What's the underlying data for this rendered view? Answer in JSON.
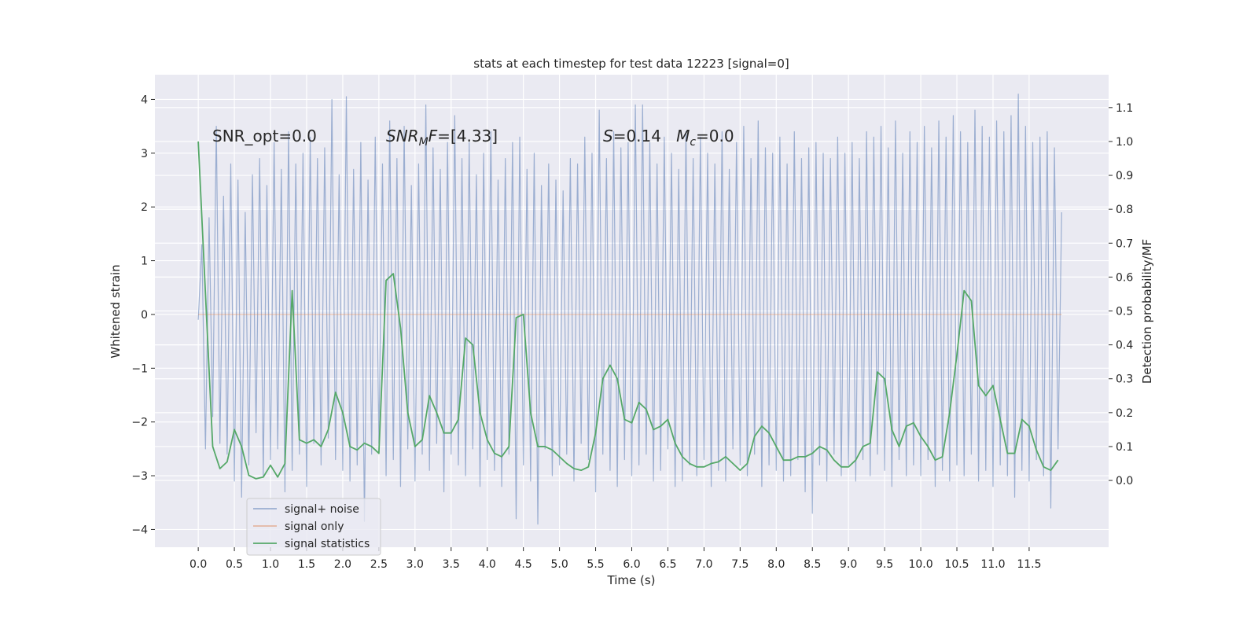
{
  "chart_data": {
    "type": "line",
    "title": "stats at each timestep for test data 12223 [signal=0]",
    "xlabel": "Time (s)",
    "ylabel": "Whitened strain",
    "y2label": "Detection probability/MF",
    "xlim": [
      -0.6,
      12.6
    ],
    "ylim": [
      -4.33,
      4.46
    ],
    "y2lim": [
      -0.197,
      1.197
    ],
    "xticks": [
      {
        "value": 0,
        "label": "0.0"
      },
      0.5,
      {
        "value": 1,
        "label": "1.0"
      },
      1.5,
      {
        "value": 2,
        "label": "2.0"
      },
      2.5,
      {
        "value": 3,
        "label": "3.0"
      },
      3.5,
      {
        "value": 4,
        "label": "4.0"
      },
      4.5,
      {
        "value": 5,
        "label": "5.0"
      },
      5.5,
      {
        "value": 6,
        "label": "6.0"
      },
      6.5,
      {
        "value": 7,
        "label": "7.0"
      },
      7.5,
      {
        "value": 8,
        "label": "8.0"
      },
      8.5,
      {
        "value": 9,
        "label": "9.0"
      },
      9.5,
      {
        "value": 10,
        "label": "10.0"
      },
      10.5,
      {
        "value": 11,
        "label": "11.0"
      },
      11.5
    ],
    "yticks": [
      {
        "value": -4,
        "label": "−4"
      },
      {
        "value": -3,
        "label": "−3"
      },
      {
        "value": -2,
        "label": "−2"
      },
      {
        "value": -1,
        "label": "−1"
      },
      0,
      1,
      2,
      3,
      4
    ],
    "y2ticks": [
      {
        "value": 0,
        "label": "0.0"
      },
      0.1,
      0.2,
      0.3,
      0.4,
      0.5,
      0.6,
      0.7,
      0.8,
      0.9,
      {
        "value": 1,
        "label": "1.0"
      },
      1.1
    ],
    "grid": true,
    "legend": "lower left",
    "annotations": [
      [
        {
          "text": "SNR_opt=0.0"
        }
      ],
      [
        {
          "text": "SNR",
          "italic": true
        },
        {
          "text": "M",
          "italic": true,
          "sub": true
        },
        {
          "text": "F",
          "italic": true
        },
        {
          "text": "=[4.33]"
        }
      ],
      [
        {
          "text": "S",
          "italic": true
        },
        {
          "text": "=0.14   "
        },
        {
          "text": "M",
          "italic": true
        },
        {
          "text": "c",
          "italic": true,
          "sub": true
        },
        {
          "text": "=0.0"
        }
      ]
    ],
    "series": [
      {
        "name": "signal+ noise",
        "color": "#4c72b0",
        "alpha": 0.5,
        "x": [
          0,
          0.05,
          0.1,
          0.15,
          0.2,
          0.25,
          0.3,
          0.35,
          0.4,
          0.45,
          0.5,
          0.55,
          0.6,
          0.65,
          0.7,
          0.75,
          0.8,
          0.85,
          0.9,
          0.95,
          1,
          1.05,
          1.1,
          1.15,
          1.2,
          1.25,
          1.3,
          1.35,
          1.4,
          1.45,
          1.5,
          1.55,
          1.6,
          1.65,
          1.7,
          1.75,
          1.8,
          1.85,
          1.9,
          1.95,
          2,
          2.05,
          2.1,
          2.15,
          2.2,
          2.25,
          2.3,
          2.35,
          2.4,
          2.45,
          2.5,
          2.55,
          2.6,
          2.65,
          2.7,
          2.75,
          2.8,
          2.85,
          2.9,
          2.95,
          3,
          3.05,
          3.1,
          3.15,
          3.2,
          3.25,
          3.3,
          3.35,
          3.4,
          3.45,
          3.5,
          3.55,
          3.6,
          3.65,
          3.7,
          3.75,
          3.8,
          3.85,
          3.9,
          3.95,
          4,
          4.05,
          4.1,
          4.15,
          4.2,
          4.25,
          4.3,
          4.35,
          4.4,
          4.45,
          4.5,
          4.55,
          4.6,
          4.65,
          4.7,
          4.75,
          4.8,
          4.85,
          4.9,
          4.95,
          5,
          5.05,
          5.1,
          5.15,
          5.2,
          5.25,
          5.3,
          5.35,
          5.4,
          5.45,
          5.5,
          5.55,
          5.6,
          5.65,
          5.7,
          5.75,
          5.8,
          5.85,
          5.9,
          5.95,
          6,
          6.05,
          6.1,
          6.15,
          6.2,
          6.25,
          6.3,
          6.35,
          6.4,
          6.45,
          6.5,
          6.55,
          6.6,
          6.65,
          6.7,
          6.75,
          6.8,
          6.85,
          6.9,
          6.95,
          7,
          7.05,
          7.1,
          7.15,
          7.2,
          7.25,
          7.3,
          7.35,
          7.4,
          7.45,
          7.5,
          7.55,
          7.6,
          7.65,
          7.7,
          7.75,
          7.8,
          7.85,
          7.9,
          7.95,
          8,
          8.05,
          8.1,
          8.15,
          8.2,
          8.25,
          8.3,
          8.35,
          8.4,
          8.45,
          8.5,
          8.55,
          8.6,
          8.65,
          8.7,
          8.75,
          8.8,
          8.85,
          8.9,
          8.95,
          9,
          9.05,
          9.1,
          9.15,
          9.2,
          9.25,
          9.3,
          9.35,
          9.4,
          9.45,
          9.5,
          9.55,
          9.6,
          9.65,
          9.7,
          9.75,
          9.8,
          9.85,
          9.9,
          9.95,
          10,
          10.05,
          10.1,
          10.15,
          10.2,
          10.25,
          10.3,
          10.35,
          10.4,
          10.45,
          10.5,
          10.55,
          10.6,
          10.65,
          10.7,
          10.75,
          10.8,
          10.85,
          10.9,
          10.95,
          11,
          11.05,
          11.1,
          11.15,
          11.2,
          11.25,
          11.3,
          11.35,
          11.4,
          11.45,
          11.5,
          11.55,
          11.6,
          11.65,
          11.7,
          11.75,
          11.8,
          11.85,
          11.9,
          11.95
        ],
        "values": [
          -0.1,
          1.3,
          -2.5,
          1.8,
          -1.9,
          3.5,
          -2.4,
          2.2,
          -2.6,
          2.8,
          -3.1,
          2.5,
          -3.4,
          1.9,
          -2.8,
          2.6,
          -2.2,
          2.9,
          -3.0,
          2.4,
          -2.7,
          3.2,
          -2.5,
          2.7,
          -3.3,
          3.4,
          -2.9,
          2.8,
          -2.6,
          3.0,
          -3.2,
          3.3,
          -2.4,
          2.9,
          -2.8,
          3.1,
          -2.3,
          4.0,
          -2.7,
          2.6,
          -2.9,
          4.05,
          -3.1,
          2.7,
          -2.8,
          3.2,
          -3.85,
          2.5,
          -2.6,
          3.3,
          -2.4,
          2.8,
          -3.0,
          3.6,
          -2.7,
          2.9,
          -3.2,
          3.5,
          -2.5,
          2.4,
          -3.1,
          2.8,
          -2.6,
          3.9,
          -2.9,
          3.1,
          -2.4,
          2.7,
          -3.3,
          3.2,
          -2.6,
          3.7,
          -2.8,
          2.9,
          -3.0,
          3.2,
          -2.5,
          2.6,
          -3.2,
          3.0,
          -2.7,
          3.4,
          -2.9,
          2.5,
          -3.2,
          2.9,
          -2.6,
          3.2,
          -3.8,
          3.3,
          -2.8,
          2.7,
          -3.1,
          3.0,
          -3.9,
          2.4,
          -2.5,
          2.8,
          -3.0,
          2.5,
          -2.8,
          2.3,
          -2.6,
          2.9,
          -3.1,
          2.8,
          -2.4,
          3.3,
          -2.7,
          3.0,
          -3.3,
          3.8,
          -2.6,
          2.9,
          -2.9,
          3.4,
          -3.2,
          3.1,
          -2.7,
          3.2,
          -3.0,
          3.9,
          -2.8,
          3.9,
          -2.6,
          3.2,
          -3.1,
          2.8,
          -2.9,
          3.3,
          -2.5,
          3.0,
          -3.2,
          2.7,
          -3.1,
          3.4,
          -2.8,
          2.9,
          -3.0,
          3.3,
          -2.7,
          3.0,
          -3.2,
          2.8,
          -2.9,
          3.4,
          -3.1,
          2.7,
          -2.5,
          3.2,
          -2.8,
          3.5,
          -3.0,
          2.9,
          -2.6,
          3.6,
          -3.2,
          3.1,
          -2.8,
          3.0,
          -2.9,
          3.3,
          -3.1,
          2.8,
          -3.0,
          3.4,
          -2.7,
          2.9,
          -3.3,
          3.1,
          -3.7,
          3.2,
          -2.8,
          3.0,
          -3.1,
          2.9,
          -2.6,
          3.3,
          -3.0,
          3.0,
          -2.8,
          3.2,
          -3.1,
          2.9,
          -2.7,
          3.4,
          -3.0,
          3.3,
          -2.6,
          3.5,
          -2.9,
          3.1,
          -3.2,
          3.6,
          -2.7,
          3.0,
          -3.0,
          3.4,
          -2.8,
          3.2,
          -3.0,
          3.5,
          -2.7,
          3.1,
          -3.2,
          3.6,
          -2.9,
          3.3,
          -3.1,
          3.7,
          -2.8,
          3.4,
          -3.0,
          3.2,
          -2.6,
          3.8,
          -3.1,
          3.5,
          -2.9,
          3.3,
          -3.2,
          3.6,
          -2.8,
          3.4,
          -3.0,
          3.7,
          -3.4,
          4.1,
          -2.9,
          3.5,
          -3.1,
          3.2,
          -2.7,
          3.3,
          -3.0,
          3.4,
          -3.6,
          3.1,
          -2.5,
          1.9
        ]
      },
      {
        "name": "signal only",
        "color": "#dd8452",
        "alpha": 0.5,
        "x": [
          0,
          11.95
        ],
        "values": [
          0,
          0
        ]
      },
      {
        "name": "signal statistics",
        "color": "#55a868",
        "axis": "y2",
        "x": [
          0,
          0.1,
          0.2,
          0.3,
          0.4,
          0.5,
          0.6,
          0.7,
          0.8,
          0.9,
          1,
          1.1,
          1.2,
          1.3,
          1.4,
          1.5,
          1.6,
          1.7,
          1.8,
          1.9,
          2,
          2.1,
          2.2,
          2.3,
          2.4,
          2.5,
          2.6,
          2.7,
          2.8,
          2.9,
          3,
          3.1,
          3.2,
          3.3,
          3.4,
          3.5,
          3.6,
          3.7,
          3.8,
          3.9,
          4,
          4.1,
          4.2,
          4.3,
          4.4,
          4.5,
          4.6,
          4.7,
          4.8,
          4.9,
          5,
          5.1,
          5.2,
          5.3,
          5.4,
          5.5,
          5.6,
          5.7,
          5.8,
          5.9,
          6,
          6.1,
          6.2,
          6.3,
          6.4,
          6.5,
          6.6,
          6.7,
          6.8,
          6.9,
          7,
          7.1,
          7.2,
          7.3,
          7.4,
          7.5,
          7.6,
          7.7,
          7.8,
          7.9,
          8,
          8.1,
          8.2,
          8.3,
          8.4,
          8.5,
          8.6,
          8.7,
          8.8,
          8.9,
          9,
          9.1,
          9.2,
          9.3,
          9.4,
          9.5,
          9.6,
          9.7,
          9.8,
          9.9,
          10,
          10.1,
          10.2,
          10.3,
          10.4,
          10.5,
          10.6,
          10.7,
          10.8,
          10.9,
          11,
          11.1,
          11.2,
          11.3,
          11.4,
          11.5,
          11.6,
          11.7,
          11.8,
          11.9
        ],
        "values": [
          1.0,
          0.55,
          0.1,
          0.035,
          0.055,
          0.15,
          0.1,
          0.015,
          0.005,
          0.01,
          0.045,
          0.01,
          0.05,
          0.56,
          0.12,
          0.11,
          0.12,
          0.1,
          0.15,
          0.26,
          0.2,
          0.1,
          0.09,
          0.11,
          0.1,
          0.08,
          0.59,
          0.61,
          0.45,
          0.2,
          0.1,
          0.12,
          0.25,
          0.2,
          0.14,
          0.14,
          0.18,
          0.42,
          0.4,
          0.2,
          0.12,
          0.08,
          0.07,
          0.1,
          0.48,
          0.49,
          0.2,
          0.1,
          0.1,
          0.09,
          0.07,
          0.05,
          0.035,
          0.03,
          0.04,
          0.14,
          0.3,
          0.34,
          0.3,
          0.18,
          0.17,
          0.23,
          0.21,
          0.15,
          0.16,
          0.18,
          0.11,
          0.07,
          0.05,
          0.04,
          0.04,
          0.05,
          0.055,
          0.07,
          0.05,
          0.03,
          0.05,
          0.13,
          0.16,
          0.14,
          0.1,
          0.06,
          0.06,
          0.07,
          0.07,
          0.08,
          0.1,
          0.09,
          0.06,
          0.04,
          0.04,
          0.06,
          0.1,
          0.11,
          0.32,
          0.3,
          0.15,
          0.1,
          0.16,
          0.17,
          0.13,
          0.1,
          0.06,
          0.07,
          0.2,
          0.37,
          0.56,
          0.53,
          0.28,
          0.25,
          0.28,
          0.18,
          0.08,
          0.08,
          0.18,
          0.16,
          0.09,
          0.04,
          0.03,
          0.06
        ]
      }
    ]
  }
}
